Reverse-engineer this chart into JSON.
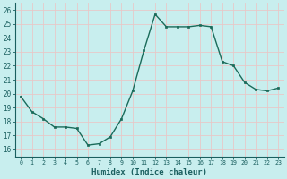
{
  "x": [
    0,
    1,
    2,
    3,
    4,
    5,
    6,
    7,
    8,
    9,
    10,
    11,
    12,
    13,
    14,
    15,
    16,
    17,
    18,
    19,
    20,
    21,
    22,
    23
  ],
  "y": [
    19.8,
    18.7,
    18.2,
    17.6,
    17.6,
    17.5,
    16.3,
    16.4,
    16.9,
    18.2,
    20.2,
    23.1,
    25.7,
    24.8,
    24.8,
    24.8,
    24.9,
    24.8,
    22.3,
    22.0,
    20.8,
    20.3,
    20.2,
    20.4
  ],
  "line_color": "#1a6b5a",
  "marker_color": "#1a6b5a",
  "bg_color": "#c8eeee",
  "grid_color_h": "#e8c8c8",
  "grid_color_v": "#e8c8c8",
  "xlabel": "Humidex (Indice chaleur)",
  "ylabel_ticks": [
    16,
    17,
    18,
    19,
    20,
    21,
    22,
    23,
    24,
    25,
    26
  ],
  "xtick_labels": [
    "0",
    "1",
    "2",
    "3",
    "4",
    "5",
    "6",
    "7",
    "8",
    "9",
    "10",
    "11",
    "12",
    "13",
    "14",
    "15",
    "16",
    "17",
    "18",
    "19",
    "20",
    "21",
    "22",
    "23"
  ],
  "ylim": [
    15.5,
    26.5
  ],
  "xlim": [
    -0.5,
    23.5
  ],
  "xlabel_color": "#1a5f5f",
  "tick_color": "#1a5f5f",
  "spine_color": "#1a5f5f",
  "figsize": [
    3.2,
    2.0
  ],
  "dpi": 100
}
